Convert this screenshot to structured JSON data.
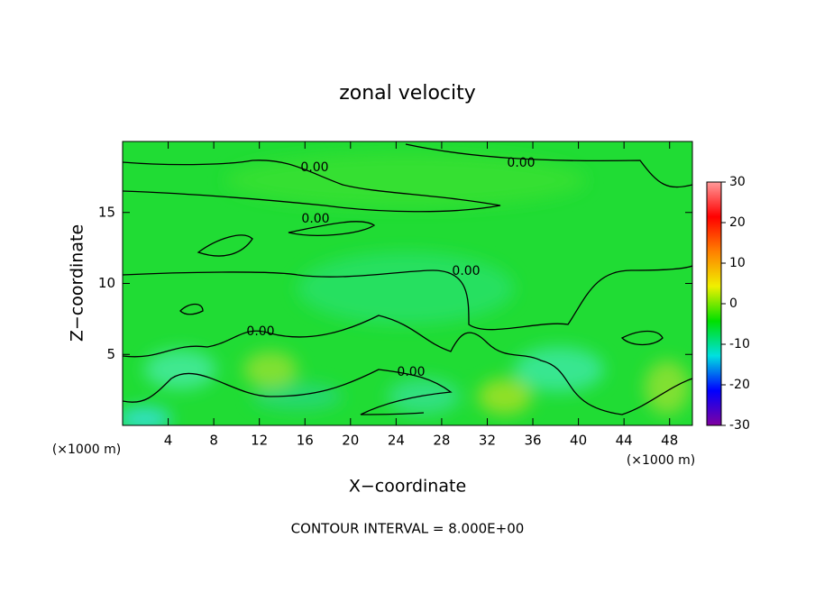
{
  "chart_data": {
    "type": "contour",
    "title": "zonal velocity",
    "x_label": "X−coordinate",
    "y_label": "Z−coordinate",
    "x_unit": "(×1000 m)",
    "xlim": [
      0,
      50
    ],
    "xticks": [
      4,
      8,
      12,
      16,
      20,
      24,
      28,
      32,
      36,
      40,
      44,
      48
    ],
    "ylim": [
      0,
      20
    ],
    "yticks": [
      5,
      10,
      15
    ],
    "contour_levels": [
      {
        "value": 0,
        "label": "0.00"
      }
    ],
    "colorbar_lim": [
      -30,
      30
    ],
    "colorbar_ticks": [
      30,
      20,
      10,
      0,
      -10,
      -20,
      -30
    ],
    "colormap": [
      "#8000a0",
      "#0000ff",
      "#00e0e0",
      "#00e000",
      "#f0f000",
      "#ff8000",
      "#ff0000",
      "#ff9a9a"
    ],
    "annotation": "CONTOUR INTERVAL = 8.000E+00"
  }
}
